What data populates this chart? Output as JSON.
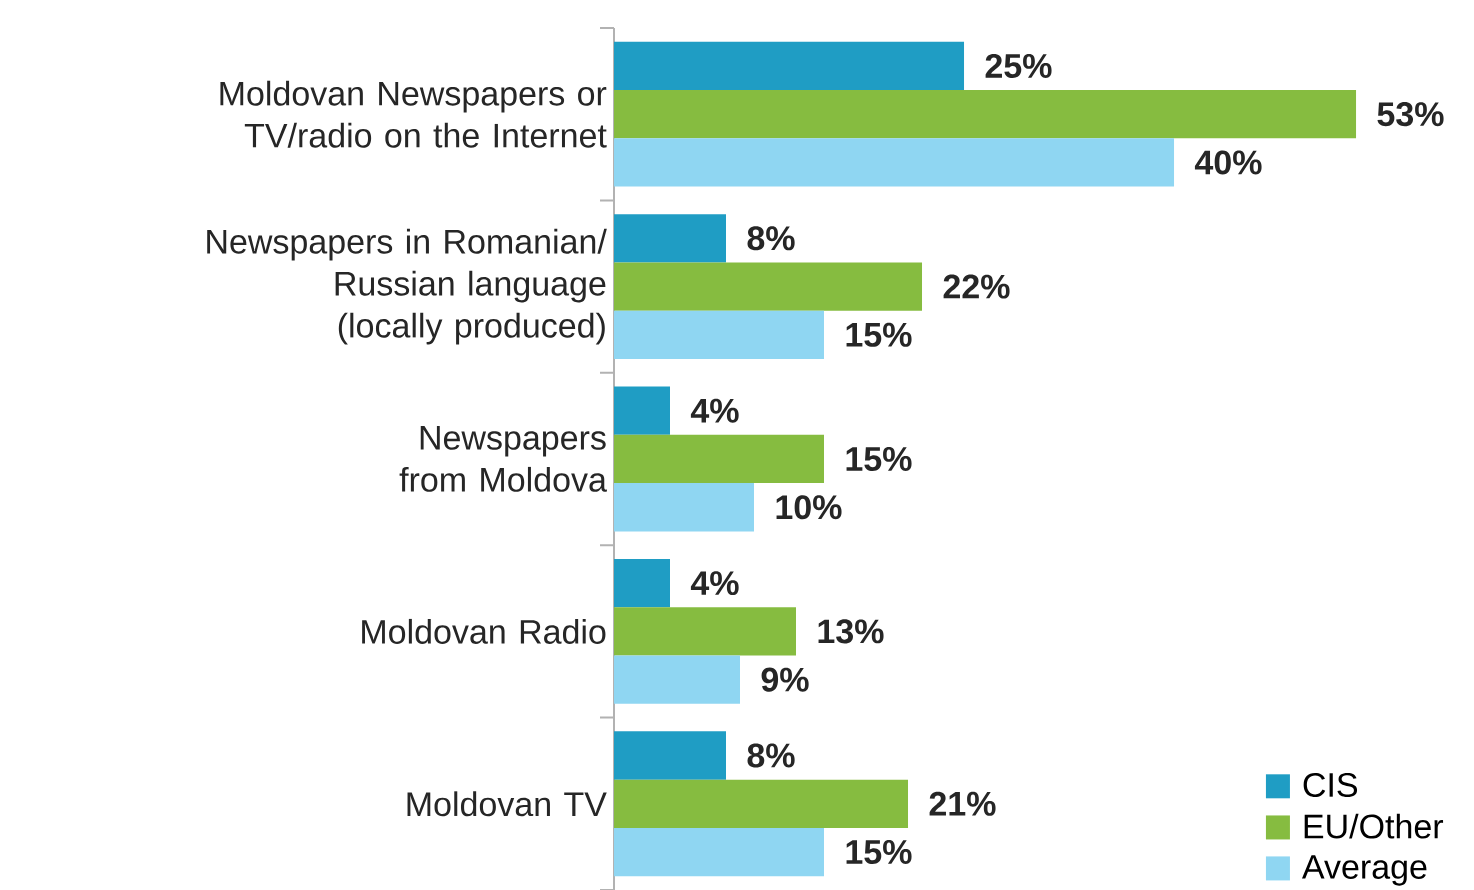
{
  "chart_data": {
    "type": "bar",
    "orientation": "horizontal",
    "categories": [
      "Moldovan Newspapers or TV/radio on the Internet",
      "Newspapers in Romanian/ Russian language (locally produced)",
      "Newspapers from Moldova",
      "Moldovan Radio",
      "Moldovan TV"
    ],
    "series": [
      {
        "name": "CIS",
        "color": "#1f9dc4",
        "values": [
          25,
          8,
          4,
          4,
          8
        ],
        "value_labels": [
          "25%",
          "8%",
          "4%",
          "4%",
          "8%"
        ]
      },
      {
        "name": "EU/Other",
        "color": "#86bc40",
        "values": [
          53,
          22,
          15,
          13,
          21
        ],
        "value_labels": [
          "53%",
          "22%",
          "15%",
          "13%",
          "21%"
        ]
      },
      {
        "name": "Average",
        "color": "#8fd6f2",
        "values": [
          40,
          15,
          10,
          9,
          15
        ],
        "value_labels": [
          "40%",
          "15%",
          "10%",
          "9%",
          "15%"
        ]
      }
    ],
    "legend": "bottom right"
  }
}
